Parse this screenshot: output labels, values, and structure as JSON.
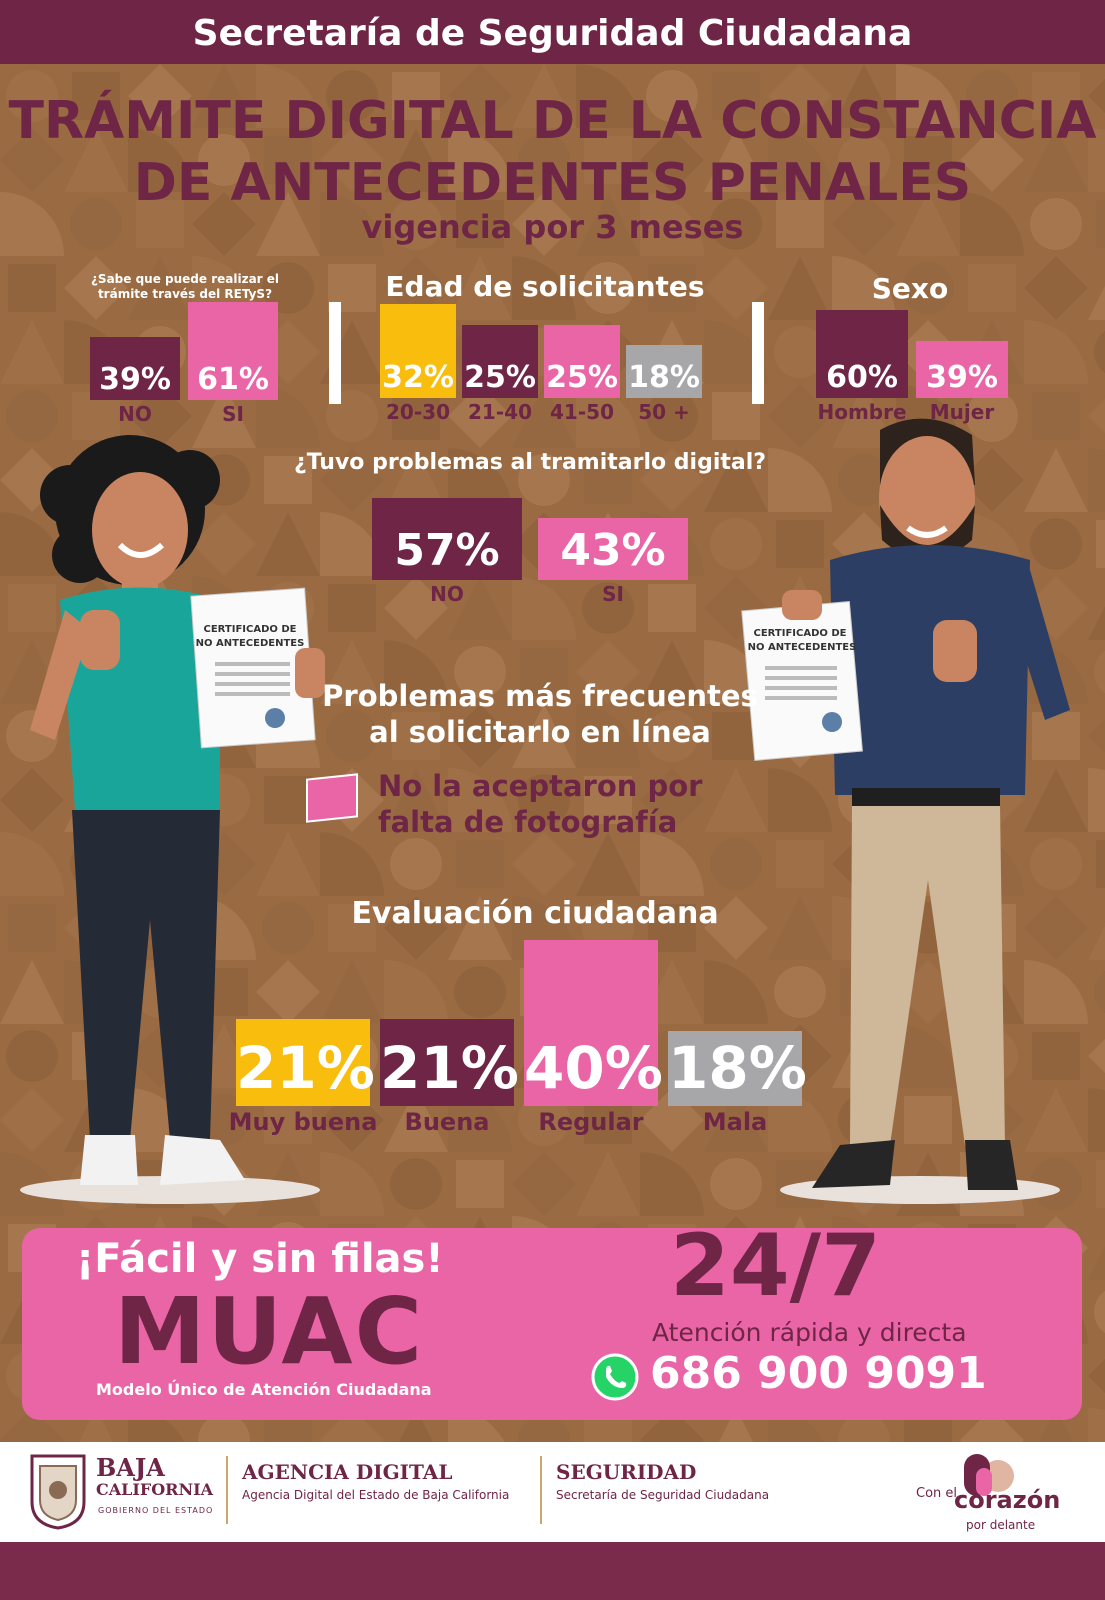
{
  "header": {
    "title": "Secretaría de Seguridad Ciudadana"
  },
  "title": {
    "line1": "TRÁMITE  DIGITAL DE LA CONSTANCIA",
    "line2": "DE ANTECEDENTES PENALES",
    "subtitle": "vigencia por 3 meses"
  },
  "colors": {
    "maroon": "#6e2546",
    "pink": "#ea65a5",
    "yellow": "#f9bd0e",
    "gray": "#a7a6a8",
    "brown": "#9a6b43"
  },
  "chart_data": [
    {
      "type": "bar",
      "title": "¿Sabe que puede realizar el trámite  través del RETyS?",
      "categories": [
        "NO",
        "SI"
      ],
      "values": [
        39,
        61
      ],
      "value_labels": [
        "39%",
        "61%"
      ]
    },
    {
      "type": "bar",
      "title": "Edad de solicitantes",
      "categories": [
        "20-30",
        "21-40",
        "41-50",
        "50 +"
      ],
      "values": [
        32,
        25,
        25,
        18
      ],
      "value_labels": [
        "32%",
        "25%",
        "25%",
        "18%"
      ]
    },
    {
      "type": "bar",
      "title": "Sexo",
      "categories": [
        "Hombre",
        "Mujer"
      ],
      "values": [
        60,
        39
      ],
      "value_labels": [
        "60%",
        "39%"
      ]
    },
    {
      "type": "bar",
      "title": "¿Tuvo problemas al tramitarlo digital?",
      "categories": [
        "NO",
        "SI"
      ],
      "values": [
        57,
        43
      ],
      "value_labels": [
        "57%",
        "43%"
      ]
    },
    {
      "type": "bar",
      "title": "Evaluación ciudadana",
      "categories": [
        "Muy buena",
        "Buena",
        "Regular",
        "Mala"
      ],
      "values": [
        21,
        21,
        40,
        18
      ],
      "value_labels": [
        "21%",
        "21%",
        "40%",
        "18%"
      ]
    }
  ],
  "problems": {
    "title_line1": "Problemas más frecuentes",
    "title_line2": "al solicitarlo en línea",
    "item_line1": "No la aceptaron por",
    "item_line2": "falta de fotografía"
  },
  "illustration": {
    "cert_line1": "CERTIFICADO DE",
    "cert_line2": "NO ANTECEDENTES"
  },
  "promo": {
    "tagline": "¡Fácil y sin filas!",
    "muac": "MUAC",
    "muac_desc": "Modelo Único de Atención Ciudadana",
    "hours": "24/7",
    "attention": "Atención rápida y directa",
    "phone": "686 900 9091"
  },
  "footer": {
    "bc_line1": "BAJA",
    "bc_line2": "CALIFORNIA",
    "bc_line3": "GOBIERNO DEL ESTADO",
    "agency_title": "AGENCIA DIGITAL",
    "agency_desc": "Agencia Digital del Estado de Baja California",
    "security_title": "SEGURIDAD",
    "security_desc": "Secretaría de Seguridad Ciudadana",
    "slogan1": "Con el",
    "slogan2": "corazón",
    "slogan3": "por delante"
  }
}
